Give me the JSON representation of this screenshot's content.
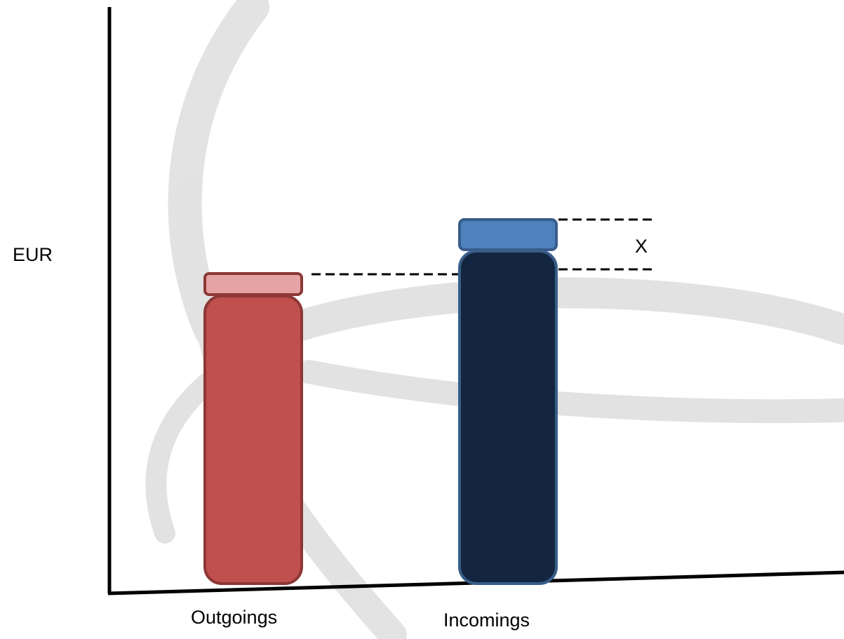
{
  "y_axis_label": "EUR",
  "difference_label": "X",
  "categories": [
    {
      "label": "Outgoings",
      "base_fill": "#c0504d",
      "base_stroke": "#8c3836",
      "cap_fill": "#e6a3a3",
      "cap_stroke": "#8c3836"
    },
    {
      "label": "Incomings",
      "base_fill": "#14253f",
      "base_stroke": "#385d8a",
      "cap_fill": "#4f81bd",
      "cap_stroke": "#385d8a"
    }
  ],
  "colors": {
    "axis": "#000000",
    "dashed_line": "#000000",
    "watermark": "#d9d9d9"
  }
}
